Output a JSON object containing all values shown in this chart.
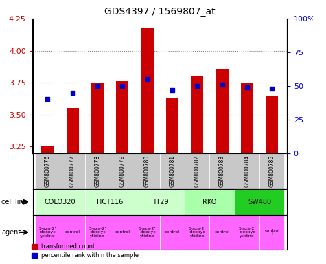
{
  "title": "GDS4397 / 1569807_at",
  "samples": [
    "GSM800776",
    "GSM800777",
    "GSM800778",
    "GSM800779",
    "GSM800780",
    "GSM800781",
    "GSM800782",
    "GSM800783",
    "GSM800784",
    "GSM800785"
  ],
  "transformed_counts": [
    3.26,
    3.55,
    3.75,
    3.76,
    4.18,
    3.63,
    3.8,
    3.86,
    3.75,
    3.65
  ],
  "percentile_ranks": [
    40,
    45,
    50,
    50,
    55,
    47,
    50,
    51,
    49,
    48
  ],
  "bar_color": "#cc0000",
  "dot_color": "#0000cc",
  "ylim_left": [
    3.2,
    4.25
  ],
  "ylim_right": [
    0,
    100
  ],
  "yticks_left": [
    3.25,
    3.5,
    3.75,
    4.0,
    4.25
  ],
  "yticks_right": [
    0,
    25,
    50,
    75,
    100
  ],
  "cell_lines": [
    {
      "name": "COLO320",
      "start": 0,
      "end": 2,
      "color": "#ccffcc"
    },
    {
      "name": "HCT116",
      "start": 2,
      "end": 4,
      "color": "#ccffcc"
    },
    {
      "name": "HT29",
      "start": 4,
      "end": 6,
      "color": "#ccffcc"
    },
    {
      "name": "RKO",
      "start": 6,
      "end": 8,
      "color": "#99ff99"
    },
    {
      "name": "SW480",
      "start": 8,
      "end": 10,
      "color": "#00ee00"
    }
  ],
  "agents": [
    {
      "name": "5-aza-2'\n-deoxyc\nytidine",
      "start": 0,
      "end": 1,
      "color": "#ff66ff"
    },
    {
      "name": "control",
      "start": 1,
      "end": 2,
      "color": "#ff66ff"
    },
    {
      "name": "5-aza-2'\n-deoxyc\nytidine",
      "start": 2,
      "end": 3,
      "color": "#ff66ff"
    },
    {
      "name": "control",
      "start": 3,
      "end": 4,
      "color": "#ff66ff"
    },
    {
      "name": "5-aza-2'\n-deoxyc\nytidine",
      "start": 4,
      "end": 5,
      "color": "#ff66ff"
    },
    {
      "name": "control",
      "start": 5,
      "end": 6,
      "color": "#ff66ff"
    },
    {
      "name": "5-aza-2'\n-deoxyc\nytidine",
      "start": 6,
      "end": 7,
      "color": "#ff66ff"
    },
    {
      "name": "control",
      "start": 7,
      "end": 8,
      "color": "#ff66ff"
    },
    {
      "name": "5-aza-2'\n-deoxyc\ny tidine",
      "start": 8,
      "end": 9,
      "color": "#ff66ff"
    },
    {
      "name": "control\nl",
      "start": 9,
      "end": 10,
      "color": "#ff66ff"
    }
  ],
  "bar_bottom": 3.2,
  "grid_color": "#888888",
  "bg_color": "#ffffff",
  "tick_color_left": "#cc0000",
  "tick_color_right": "#0000cc",
  "xlabel_color": "#888888"
}
